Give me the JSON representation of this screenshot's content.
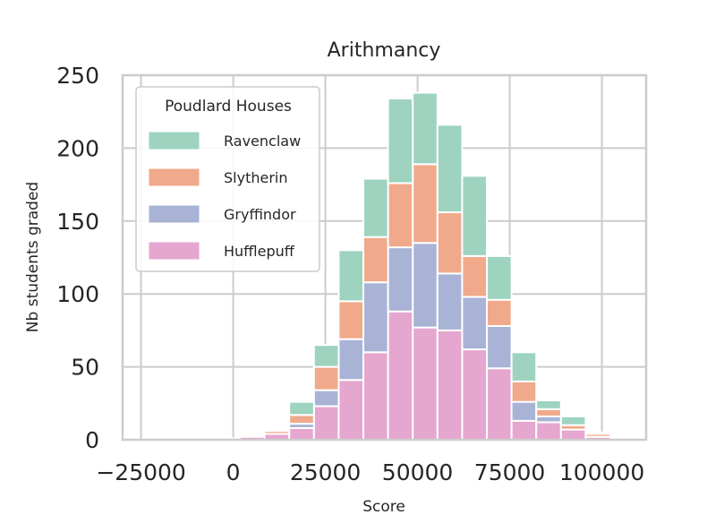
{
  "chart_data": {
    "type": "bar",
    "subtype": "stacked-histogram",
    "title": "Arithmancy",
    "xlabel": "Score",
    "ylabel": "Nb students graded",
    "xlim": [
      -30000,
      112000
    ],
    "ylim": [
      0,
      250
    ],
    "xticks": [
      -25000,
      0,
      25000,
      50000,
      75000,
      100000
    ],
    "xtick_labels": [
      "−25000",
      "0",
      "25000",
      "50000",
      "75000",
      "100000"
    ],
    "yticks": [
      0,
      50,
      100,
      150,
      200,
      250
    ],
    "ytick_labels": [
      "0",
      "50",
      "100",
      "150",
      "200",
      "250"
    ],
    "grid": true,
    "bin_edges": [
      -25000,
      -18300,
      -11600,
      -4900,
      1800,
      8500,
      15200,
      21900,
      28600,
      35300,
      42000,
      48700,
      55400,
      62100,
      68800,
      75500,
      82200,
      88900,
      95600,
      102300,
      109000
    ],
    "legend": {
      "title": "Poudlard Houses",
      "position": "upper-left"
    },
    "series": [
      {
        "name": "Hufflepuff",
        "color": "#e5a6cf",
        "values": [
          0,
          0,
          0,
          1,
          2,
          4,
          8,
          23,
          41,
          60,
          88,
          77,
          75,
          62,
          49,
          13,
          12,
          7,
          2,
          1
        ]
      },
      {
        "name": "Gryffindor",
        "color": "#a9b3d6",
        "values": [
          0,
          0,
          0,
          0,
          0,
          0,
          3,
          11,
          28,
          48,
          44,
          58,
          39,
          36,
          29,
          13,
          4,
          0,
          0,
          0
        ]
      },
      {
        "name": "Slytherin",
        "color": "#f0a98a",
        "values": [
          0,
          0,
          0,
          0,
          0,
          2,
          6,
          16,
          26,
          31,
          44,
          54,
          42,
          28,
          18,
          14,
          5,
          3,
          2,
          1
        ]
      },
      {
        "name": "Ravenclaw",
        "color": "#9dd3bf",
        "values": [
          0,
          0,
          0,
          0,
          0,
          0,
          9,
          15,
          35,
          40,
          58,
          49,
          60,
          55,
          30,
          20,
          6,
          6,
          1,
          1
        ]
      }
    ],
    "legend_order": [
      "Ravenclaw",
      "Slytherin",
      "Gryffindor",
      "Hufflepuff"
    ]
  }
}
